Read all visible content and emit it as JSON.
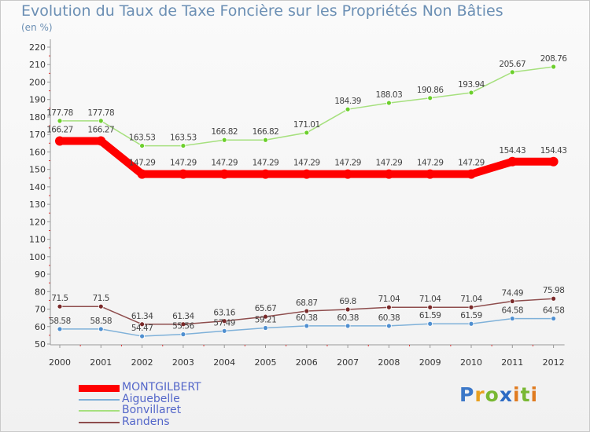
{
  "title": "Evolution du Taux de Taxe Foncière sur les Propriétés Non Bâties",
  "unit_label": "(en %)",
  "logo_text": "Proxiti",
  "chart_data": {
    "type": "line",
    "x": [
      "2000",
      "2001",
      "2002",
      "2003",
      "2004",
      "2005",
      "2006",
      "2007",
      "2008",
      "2009",
      "2010",
      "2011",
      "2012"
    ],
    "ylim": [
      50,
      220
    ],
    "yticks": [
      50,
      60,
      70,
      80,
      90,
      100,
      110,
      120,
      130,
      140,
      150,
      160,
      170,
      180,
      190,
      200,
      210,
      220
    ],
    "grid": false,
    "legend_position": "bottom-left",
    "series": [
      {
        "name": "MONTGILBERT",
        "color": "#ff0000",
        "marker_color": "#ff0000",
        "values": [
          166.27,
          166.27,
          147.29,
          147.29,
          147.29,
          147.29,
          147.29,
          147.29,
          147.29,
          147.29,
          147.29,
          154.43,
          154.43
        ],
        "labels": [
          "166.27",
          "166.27",
          "147.29",
          "147.29",
          "147.29",
          "147.29",
          "147.29",
          "147.29",
          "147.29",
          "147.29",
          "147.29",
          "154.43",
          "154.43"
        ]
      },
      {
        "name": "Aiguebelle",
        "color": "#7fb1d9",
        "marker_color": "#4f8fd0",
        "values": [
          58.58,
          58.58,
          54.47,
          55.56,
          57.49,
          59.21,
          60.38,
          60.38,
          60.38,
          61.59,
          61.59,
          64.58,
          64.58
        ],
        "labels": [
          "58.58",
          "58.58",
          "54.47",
          "55.56",
          "57.49",
          "59.21",
          "60.38",
          "60.38",
          "60.38",
          "61.59",
          "61.59",
          "64.58",
          "64.58"
        ]
      },
      {
        "name": "Bonvillaret",
        "color": "#a6e07e",
        "marker_color": "#6ccf2c",
        "values": [
          177.78,
          177.78,
          163.53,
          163.53,
          166.82,
          166.82,
          171.01,
          184.39,
          188.03,
          190.86,
          193.94,
          205.67,
          208.76
        ],
        "labels": [
          "177.78",
          "177.78",
          "163.53",
          "163.53",
          "166.82",
          "166.82",
          "171.01",
          "184.39",
          "188.03",
          "190.86",
          "193.94",
          "205.67",
          "208.76"
        ]
      },
      {
        "name": "Randens",
        "color": "#8e4d4d",
        "marker_color": "#7a2a2a",
        "values": [
          71.5,
          71.5,
          61.34,
          61.34,
          63.16,
          65.67,
          68.87,
          69.8,
          71.04,
          71.04,
          71.04,
          74.49,
          75.98
        ],
        "labels": [
          "71.5",
          "71.5",
          "61.34",
          "61.34",
          "63.16",
          "65.67",
          "68.87",
          "69.8",
          "71.04",
          "71.04",
          "71.04",
          "74.49",
          "75.98"
        ]
      }
    ]
  }
}
